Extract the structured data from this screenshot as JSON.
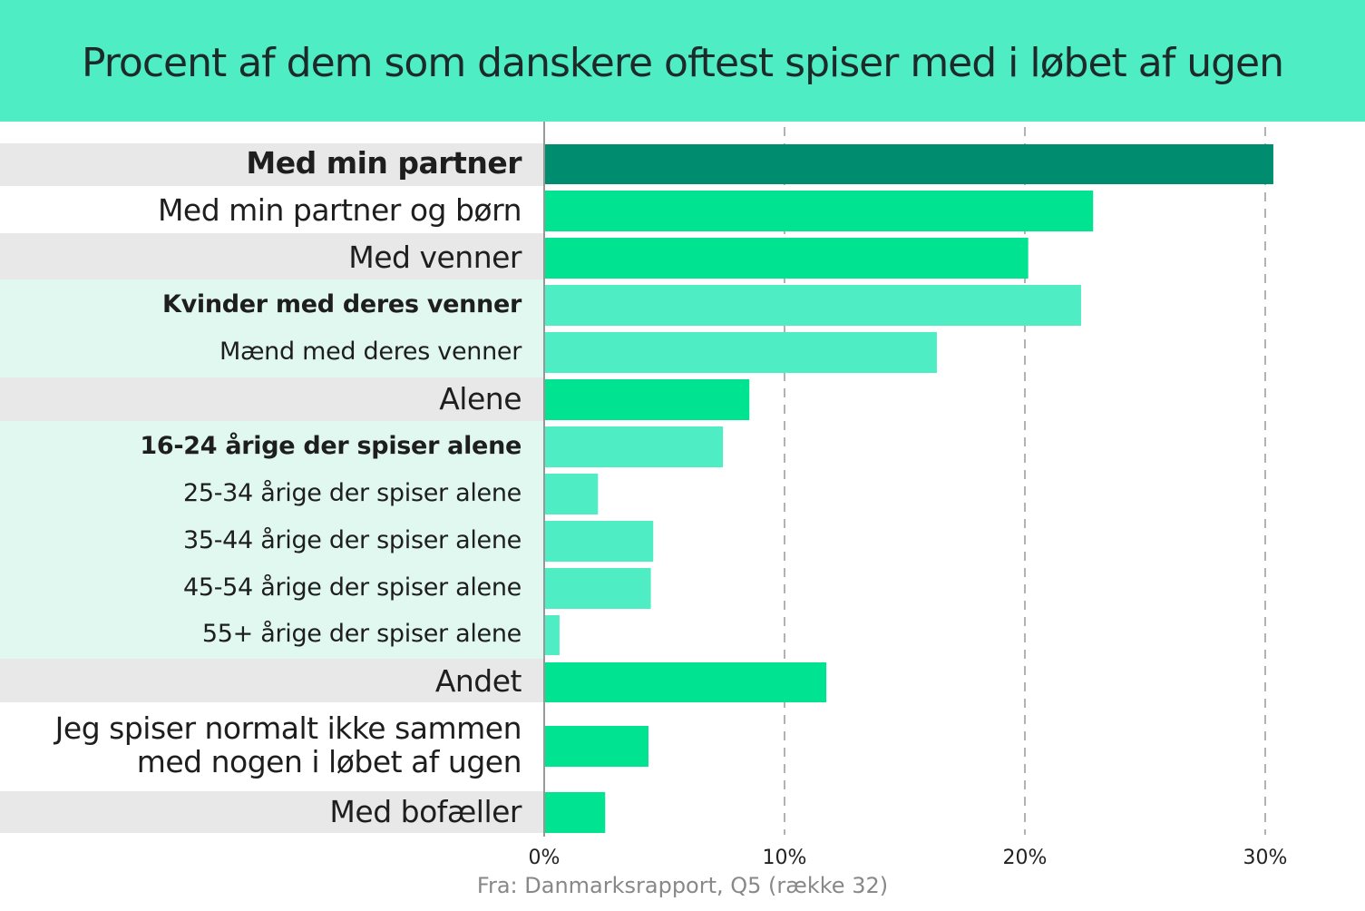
{
  "chart_data": {
    "type": "bar",
    "orientation": "horizontal",
    "title": "Procent af dem som danskere oftest spiser med i løbet af ugen",
    "source": "Fra: Danmarksrapport, Q5 (række 32)",
    "xlim": [
      0,
      30
    ],
    "ticks": [
      0,
      10,
      20,
      30
    ],
    "tick_labels": [
      "0%",
      "10%",
      "20%",
      "30%"
    ],
    "grid": "vertical dashed",
    "categories": [
      {
        "label": "Med min partner",
        "value": 30.3,
        "level": "main",
        "emphasis": true,
        "color": "#008c6e"
      },
      {
        "label": "Med min partner og børn",
        "value": 22.8,
        "level": "main",
        "emphasis": false,
        "color": "#00e391"
      },
      {
        "label": "Med venner",
        "value": 20.1,
        "level": "main",
        "emphasis": false,
        "color": "#00e391"
      },
      {
        "label": "Kvinder med deres venner",
        "value": 22.3,
        "level": "sub",
        "emphasis": true,
        "color": "#4eedc4"
      },
      {
        "label": "Mænd med deres venner",
        "value": 16.3,
        "level": "sub",
        "emphasis": false,
        "color": "#4eedc4"
      },
      {
        "label": "Alene",
        "value": 8.5,
        "level": "main",
        "emphasis": false,
        "color": "#00e391"
      },
      {
        "label": "16-24 årige der spiser alene",
        "value": 7.4,
        "level": "sub",
        "emphasis": true,
        "color": "#4eedc4"
      },
      {
        "label": "25-34 årige der spiser alene",
        "value": 2.2,
        "level": "sub",
        "emphasis": false,
        "color": "#4eedc4"
      },
      {
        "label": "35-44 årige der spiser alene",
        "value": 4.5,
        "level": "sub",
        "emphasis": false,
        "color": "#4eedc4"
      },
      {
        "label": "45-54 årige der spiser alene",
        "value": 4.4,
        "level": "sub",
        "emphasis": false,
        "color": "#4eedc4"
      },
      {
        "label": "55+ årige der spiser alene",
        "value": 0.6,
        "level": "sub",
        "emphasis": false,
        "color": "#4eedc4"
      },
      {
        "label": "Andet",
        "value": 11.7,
        "level": "main",
        "emphasis": false,
        "color": "#00e391"
      },
      {
        "label": "Jeg spiser normalt ikke sammen\nmed nogen i løbet af ugen",
        "value": 4.3,
        "level": "main",
        "emphasis": false,
        "color": "#00e391"
      },
      {
        "label": "Med bofæller",
        "value": 2.5,
        "level": "main",
        "emphasis": false,
        "color": "#00e391"
      }
    ],
    "colors": {
      "header": "#4eedc4",
      "label_bg_main": "#e8e8e8",
      "label_bg_sub": "#e0f8f0"
    }
  }
}
